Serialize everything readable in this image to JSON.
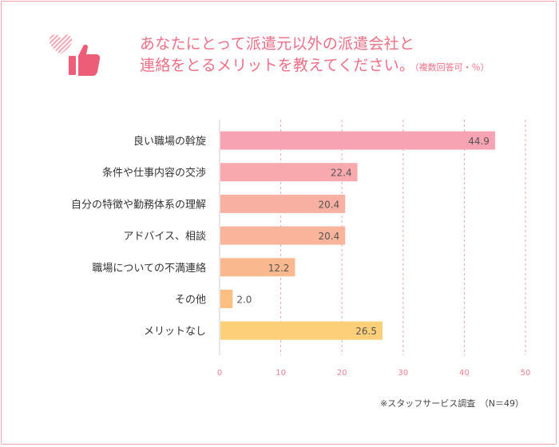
{
  "header": {
    "title_line1": "あなたにとって派遣元以外の派遣会社と",
    "title_line2": "連絡をとるメリットを教えてください。",
    "title_note": "（複数回答可・％）"
  },
  "footer": {
    "source": "※スタッフサービス調査　（N＝49）"
  },
  "chart_data": {
    "type": "bar",
    "orientation": "horizontal",
    "title": "あなたにとって派遣元以外の派遣会社と連絡をとるメリットを教えてください。（複数回答可・％）",
    "categories": [
      "良い職場の斡旋",
      "条件や仕事内容の交渉",
      "自分の特徴や勤務体系の理解",
      "アドバイス、相談",
      "職場についての不満連絡",
      "その他",
      "メリットなし"
    ],
    "values": [
      44.9,
      22.4,
      20.4,
      20.4,
      12.2,
      2.0,
      26.5
    ],
    "value_labels": [
      "44.9",
      "22.4",
      "20.4",
      "20.4",
      "12.2",
      "2.0",
      "26.5"
    ],
    "bar_colors": [
      "#f7a3b3",
      "#f8a9ad",
      "#f8b0a2",
      "#f9b49b",
      "#f9b88e",
      "#fbbf82",
      "#fdcf78"
    ],
    "xlim": [
      0,
      50
    ],
    "xticks": [
      "0",
      "10",
      "20",
      "30",
      "40",
      "50"
    ],
    "xlabel": "",
    "ylabel": "",
    "grid": true
  }
}
